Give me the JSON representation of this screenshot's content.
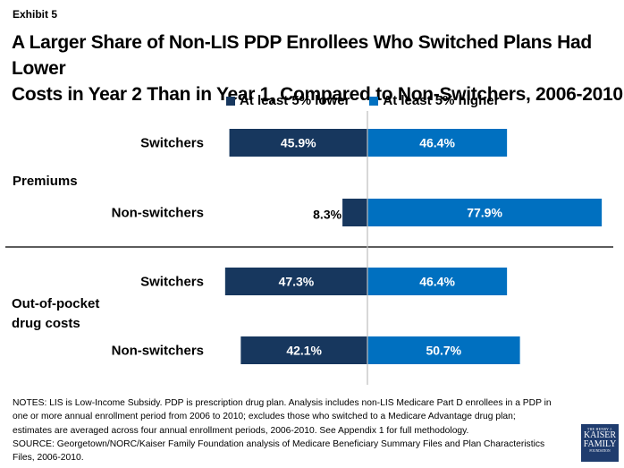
{
  "exhibit": "Exhibit 5",
  "title_line1": "A Larger Share of Non-LIS PDP Enrollees Who Switched Plans Had Lower",
  "title_line2": "Costs in Year 2 Than in Year 1, Compared to Non-Switchers, 2006-2010",
  "colors": {
    "lower": "#17375e",
    "higher": "#0070c0",
    "center_line": "#bfbfbf",
    "divider": "#262626"
  },
  "chart_data": {
    "type": "bar",
    "orientation": "horizontal-diverging",
    "title": "A Larger Share of Non-LIS PDP Enrollees Who Switched Plans Had Lower Costs in Year 2 Than in Year 1, Compared to Non-Switchers, 2006-2010",
    "legend": [
      "At least 5% lower",
      "At least 5% higher"
    ],
    "legend_position": "top",
    "groups": [
      {
        "name": "Premiums",
        "rows": [
          {
            "category": "Switchers",
            "lower": 45.9,
            "higher": 46.4,
            "lower_label": "45.9%",
            "higher_label": "46.4%"
          },
          {
            "category": "Non-switchers",
            "lower": 8.3,
            "higher": 77.9,
            "lower_label": "8.3%",
            "higher_label": "77.9%"
          }
        ]
      },
      {
        "name_line1": "Out-of-pocket",
        "name_line2": "drug costs",
        "name": "Out-of-pocket drug costs",
        "rows": [
          {
            "category": "Switchers",
            "lower": 47.3,
            "higher": 46.4,
            "lower_label": "47.3%",
            "higher_label": "46.4%"
          },
          {
            "category": "Non-switchers",
            "lower": 42.1,
            "higher": 50.7,
            "lower_label": "42.1%",
            "higher_label": "50.7%"
          }
        ]
      }
    ],
    "unit": "percent"
  },
  "notes": [
    "NOTES: LIS is Low-Income Subsidy. PDP is prescription drug plan. Analysis includes non-LIS Medicare Part D enrollees in a PDP in",
    "one or more annual enrollment period from 2006 to 2010; excludes those who switched to a Medicare Advantage drug plan;",
    "estimates are averaged across four annual enrollment periods, 2006-2010. See Appendix 1 for full methodology.",
    "SOURCE: Georgetown/NORC/Kaiser Family Foundation analysis of Medicare Beneficiary Summary Files and Plan Characteristics",
    "Files, 2006-2010."
  ],
  "logo": {
    "line1": "THE HENRY J.",
    "line2": "KAISER",
    "line3": "FAMILY",
    "line4": "FOUNDATION"
  }
}
